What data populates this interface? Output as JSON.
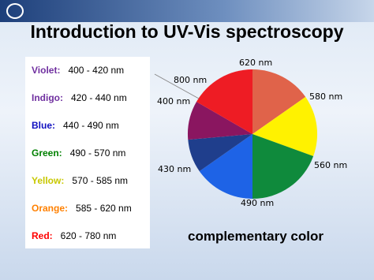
{
  "title": "Introduction to UV-Vis spectroscopy",
  "ranges": [
    {
      "name": "Violet:",
      "range": "400 - 420 nm"
    },
    {
      "name": "Indigo:",
      "range": "420 - 440 nm"
    },
    {
      "name": "Blue:",
      "range": "440 - 490 nm"
    },
    {
      "name": "Green:",
      "range": "490 - 570 nm"
    },
    {
      "name": "Yellow:",
      "range": "570 - 585 nm"
    },
    {
      "name": "Orange:",
      "range": "585 - 620 nm"
    },
    {
      "name": "Red:",
      "range": "620 - 780 nm"
    }
  ],
  "wheel_labels": [
    "620 nm",
    "580 nm",
    "560 nm",
    "490 nm",
    "430 nm",
    "400 nm",
    "800 nm"
  ],
  "caption": "complementary color"
}
